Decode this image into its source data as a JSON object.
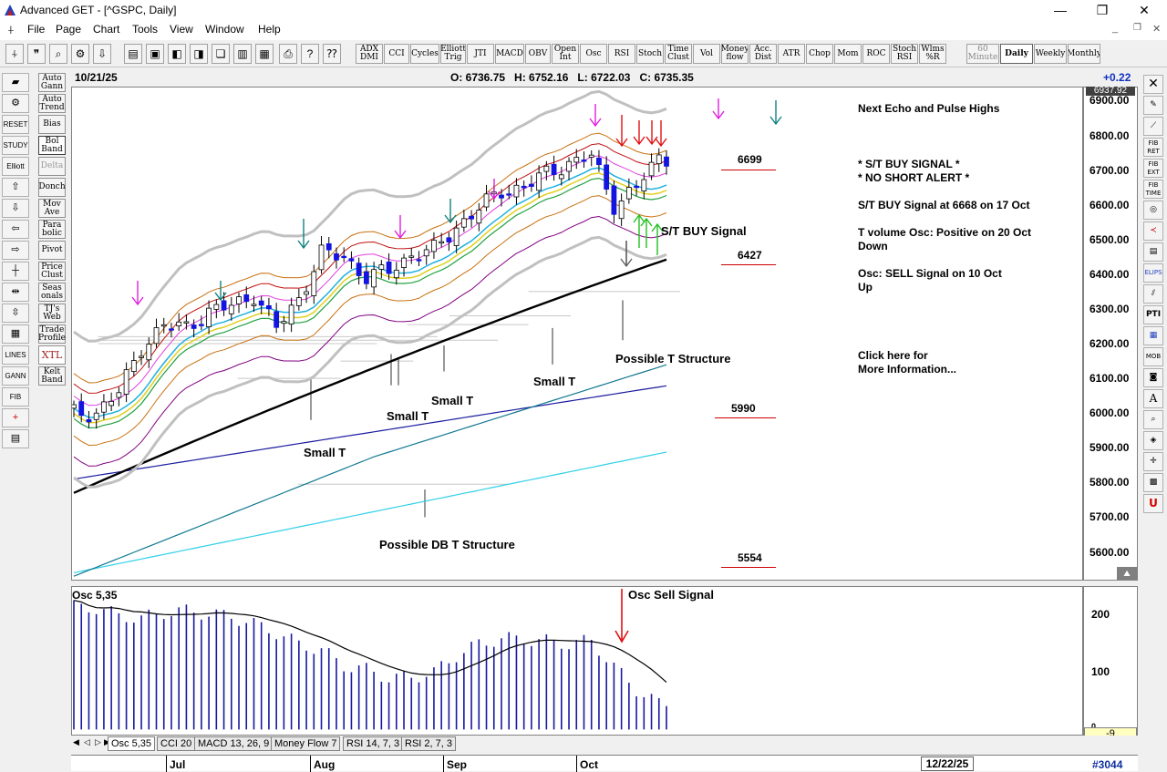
{
  "window": {
    "title": "Advanced GET - [^GSPC, Daily]",
    "min_glyph": "—",
    "max_glyph": "❐",
    "close_glyph": "✕",
    "inner_min": "_",
    "inner_restore": "❐",
    "inner_close": "✕"
  },
  "menu": [
    "File",
    "Page",
    "Chart",
    "Tools",
    "View",
    "Window",
    "Help"
  ],
  "toolbar": {
    "study_buttons": [
      "ADX DMI",
      "CCI",
      "Cycles",
      "Elliott Trig",
      "JTI",
      "MACD",
      "OBV",
      "Open Int",
      "Osc",
      "RSI",
      "Stoch",
      "Time Clust",
      "Vol",
      "Money flow",
      "Acc. Dist",
      "ATR",
      "Chop",
      "Mom",
      "ROC",
      "Stoch RSI",
      "Wlms %R"
    ],
    "interval_buttons": [
      "60 Minute",
      "Daily",
      "Weekly",
      "Monthly"
    ],
    "selected_interval": "Daily"
  },
  "left_panel": {
    "buttons": [
      "Auto Gann",
      "Auto Trend",
      "Bias",
      "Bol Band",
      "Delta",
      "Donch",
      "Mov Ave",
      "Para bolic",
      "Pivot",
      "Price Clust",
      "Seas onals",
      "TJ's Web",
      "Trade Profile",
      "XTL",
      "Kelt Band"
    ]
  },
  "chart_header": {
    "date": "10/21/25",
    "ohlc": "O: 6736.75   H: 6752.16   L: 6722.03   C: 6735.35",
    "change": "+0.22"
  },
  "annotations": {
    "right_notes": [
      "Next Echo and Pulse Highs",
      "* S/T BUY SIGNAL *",
      "* NO SHORT ALERT *",
      "S/T BUY Signal at 6668 on 17 Oct",
      "T volume Osc: Positive on 20 Oct",
      "Down",
      "Osc: SELL Signal on 10 Oct",
      "Up",
      "Click here for",
      "More Information..."
    ],
    "targets": [
      "6699",
      "6427",
      "5990",
      "5554"
    ],
    "labels": {
      "st_buy": "S/T BUY Signal",
      "possible_t": "Possible T Structure",
      "small_t_1": "Small T",
      "small_t_2": "Small T",
      "small_t_3": "Small T",
      "small_t_4": "Small T",
      "possible_db": "Possible DB T Structure",
      "osc_sell": "Osc Sell Signal",
      "osc_title": "Osc 5,35"
    }
  },
  "price_axis": {
    "top_value": "6937.92",
    "ticks": [
      "6900.00",
      "6800.00",
      "6700.00",
      "6600.00",
      "6500.00",
      "6400.00",
      "6300.00",
      "6200.00",
      "6100.00",
      "6000.00",
      "5900.00",
      "5800.00",
      "5700.00",
      "5600.00"
    ]
  },
  "osc_axis": {
    "ticks": [
      "200",
      "100",
      "0"
    ],
    "current": "-9"
  },
  "tabs": [
    "Osc 5,35",
    "CCI 20",
    "MACD 13, 26, 9",
    "Money Flow 7",
    "RSI 14, 7, 3",
    "RSI 2, 7, 3"
  ],
  "date_axis": {
    "months": [
      "Jul",
      "Aug",
      "Sep",
      "Oct"
    ],
    "future_date": "12/22/25",
    "counter": "#3044"
  },
  "chart_data": {
    "type": "line",
    "x": [
      1,
      4,
      7,
      10,
      13,
      16,
      19,
      22,
      25,
      28,
      31,
      34,
      37,
      40,
      43,
      46,
      49,
      52,
      55,
      58,
      61,
      64,
      67,
      70,
      73,
      76,
      79
    ],
    "series": [
      {
        "values": [
          6000,
          6000,
          6060,
          6190,
          6250,
          6250,
          6290,
          6310,
          6340,
          6245,
          6330,
          6460,
          6450,
          6390,
          6410,
          6455,
          6470,
          6535,
          6590,
          6640,
          6650,
          6690,
          6720,
          6740,
          6600,
          6650,
          6735
        ]
      }
    ],
    "ylim": [
      5520,
      6937.92
    ],
    "osc": {
      "values": [
        215,
        213,
        200,
        195,
        205,
        208,
        203,
        198,
        185,
        170,
        150,
        140,
        112,
        105,
        90,
        92,
        100,
        130,
        150,
        160,
        158,
        155,
        150,
        156,
        110,
        70,
        45
      ],
      "ylim": [
        -9,
        250
      ]
    }
  }
}
